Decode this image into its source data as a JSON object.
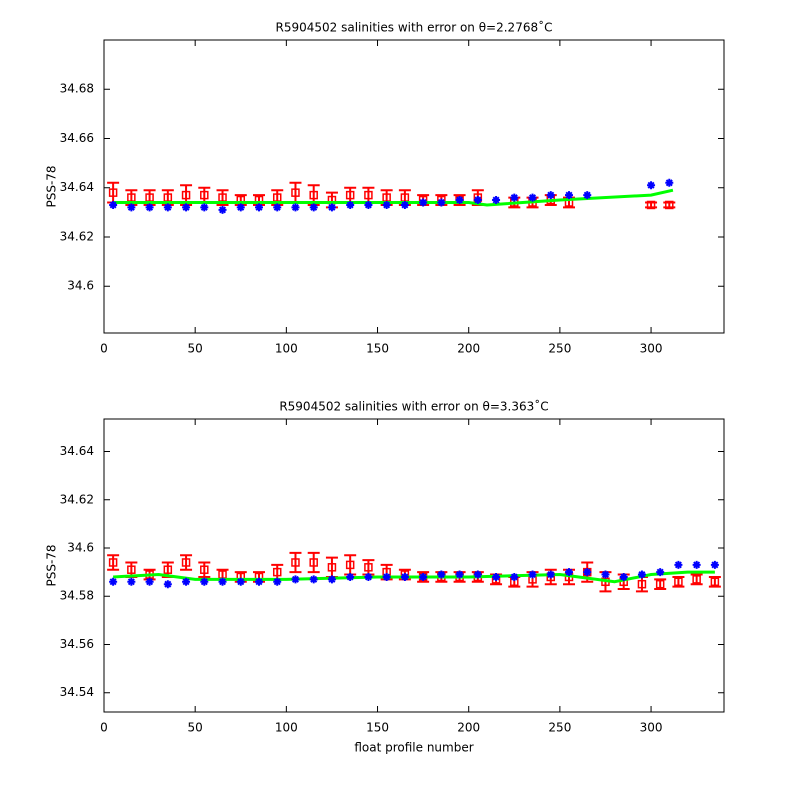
{
  "chart_data": [
    {
      "type": "line",
      "title": "R5904502 salinities with error on θ=2.2768˚C",
      "ylabel": "PSS-78",
      "xlim": [
        0,
        340
      ],
      "xticks": [
        0,
        50,
        100,
        150,
        200,
        250,
        300
      ],
      "ylim": [
        34.581,
        34.7
      ],
      "yticks": [
        34.6,
        34.62,
        34.64,
        34.66,
        34.68
      ],
      "series": [
        {
          "style": "errorbar",
          "color": "#ff0000",
          "x": [
            5,
            15,
            25,
            35,
            45,
            55,
            65,
            75,
            85,
            95,
            105,
            115,
            125,
            135,
            145,
            155,
            165,
            175,
            185,
            195,
            205,
            225,
            235,
            245,
            255,
            300,
            310
          ],
          "values": [
            34.638,
            34.636,
            34.636,
            34.636,
            34.637,
            34.637,
            34.636,
            34.635,
            34.635,
            34.636,
            34.638,
            34.637,
            34.635,
            34.637,
            34.637,
            34.636,
            34.636,
            34.635,
            34.635,
            34.635,
            34.636,
            34.634,
            34.634,
            34.635,
            34.634,
            34.633,
            34.633
          ],
          "errors": [
            0.004,
            0.003,
            0.003,
            0.003,
            0.004,
            0.003,
            0.003,
            0.002,
            0.002,
            0.003,
            0.004,
            0.004,
            0.003,
            0.003,
            0.003,
            0.003,
            0.003,
            0.002,
            0.002,
            0.002,
            0.003,
            0.002,
            0.002,
            0.002,
            0.002,
            0.001,
            0.001
          ]
        },
        {
          "style": "line",
          "color": "#00ff00",
          "x": [
            5,
            50,
            100,
            150,
            200,
            210,
            250,
            300,
            312
          ],
          "values": [
            34.634,
            34.634,
            34.634,
            34.634,
            34.634,
            34.633,
            34.635,
            34.637,
            34.639
          ]
        },
        {
          "style": "marker",
          "color": "#0000ff",
          "x": [
            5,
            15,
            25,
            35,
            45,
            55,
            65,
            75,
            85,
            95,
            105,
            115,
            125,
            135,
            145,
            155,
            165,
            175,
            185,
            195,
            205,
            215,
            225,
            235,
            245,
            255,
            265,
            300,
            310
          ],
          "values": [
            34.633,
            34.632,
            34.632,
            34.632,
            34.632,
            34.632,
            34.631,
            34.632,
            34.632,
            34.632,
            34.632,
            34.632,
            34.632,
            34.633,
            34.633,
            34.633,
            34.633,
            34.634,
            34.634,
            34.635,
            34.635,
            34.635,
            34.636,
            34.636,
            34.637,
            34.637,
            34.637,
            34.641,
            34.642
          ]
        }
      ]
    },
    {
      "type": "line",
      "title": "R5904502 salinities with error on θ=3.363˚C",
      "ylabel": "PSS-78",
      "xlabel": "float profile number",
      "xlim": [
        0,
        340
      ],
      "xticks": [
        0,
        50,
        100,
        150,
        200,
        250,
        300
      ],
      "ylim": [
        34.532,
        34.6535
      ],
      "yticks": [
        34.54,
        34.56,
        34.58,
        34.6,
        34.62,
        34.64
      ],
      "series": [
        {
          "style": "errorbar",
          "color": "#ff0000",
          "x": [
            5,
            15,
            25,
            35,
            45,
            55,
            65,
            75,
            85,
            95,
            105,
            115,
            125,
            135,
            145,
            155,
            165,
            175,
            185,
            195,
            205,
            215,
            225,
            235,
            245,
            255,
            265,
            275,
            285,
            295,
            305,
            315,
            325,
            335
          ],
          "values": [
            34.594,
            34.591,
            34.589,
            34.591,
            34.594,
            34.591,
            34.589,
            34.588,
            34.588,
            34.59,
            34.594,
            34.594,
            34.592,
            34.593,
            34.592,
            34.59,
            34.589,
            34.588,
            34.588,
            34.588,
            34.588,
            34.587,
            34.586,
            34.587,
            34.588,
            34.588,
            34.59,
            34.586,
            34.586,
            34.585,
            34.585,
            34.586,
            34.587,
            34.586
          ],
          "errors": [
            0.003,
            0.003,
            0.002,
            0.003,
            0.003,
            0.003,
            0.002,
            0.002,
            0.002,
            0.003,
            0.004,
            0.004,
            0.004,
            0.004,
            0.003,
            0.003,
            0.002,
            0.002,
            0.002,
            0.002,
            0.002,
            0.002,
            0.002,
            0.003,
            0.003,
            0.003,
            0.004,
            0.004,
            0.003,
            0.003,
            0.002,
            0.002,
            0.002,
            0.002
          ]
        },
        {
          "style": "line",
          "color": "#00ff00",
          "x": [
            5,
            30,
            50,
            100,
            150,
            200,
            250,
            280,
            300,
            320,
            335
          ],
          "values": [
            34.588,
            34.589,
            34.587,
            34.587,
            34.588,
            34.588,
            34.589,
            34.586,
            34.589,
            34.59,
            34.59
          ]
        },
        {
          "style": "marker",
          "color": "#0000ff",
          "x": [
            5,
            15,
            25,
            35,
            45,
            55,
            65,
            75,
            85,
            95,
            105,
            115,
            125,
            135,
            145,
            155,
            165,
            175,
            185,
            195,
            205,
            215,
            225,
            235,
            245,
            255,
            265,
            275,
            285,
            295,
            305,
            315,
            325,
            335
          ],
          "values": [
            34.586,
            34.586,
            34.586,
            34.585,
            34.586,
            34.586,
            34.586,
            34.586,
            34.586,
            34.586,
            34.587,
            34.587,
            34.587,
            34.588,
            34.588,
            34.588,
            34.588,
            34.588,
            34.589,
            34.589,
            34.589,
            34.588,
            34.588,
            34.589,
            34.589,
            34.59,
            34.59,
            34.589,
            34.588,
            34.589,
            34.59,
            34.593,
            34.593,
            34.593
          ]
        }
      ]
    }
  ]
}
